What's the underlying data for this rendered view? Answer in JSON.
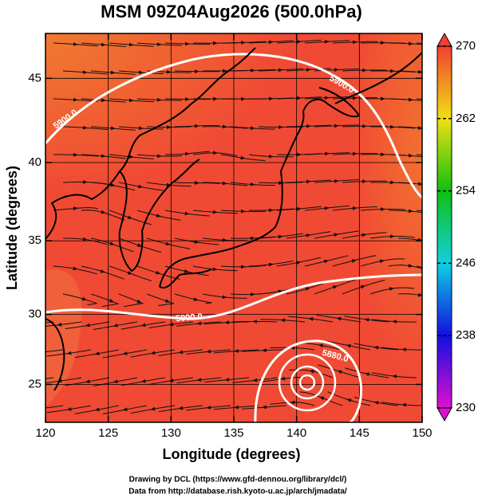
{
  "chart_data": {
    "type": "map",
    "title": "MSM 09Z04Aug2026 (500.0hPa)",
    "xlabel": "Longitude (degrees)",
    "ylabel": "Latitude  (degrees)",
    "xlim": [
      120,
      150
    ],
    "ylim": [
      22.2,
      47.5
    ],
    "xticks": [
      120,
      125,
      130,
      135,
      140,
      145,
      150
    ],
    "yticks": [
      25,
      30,
      35,
      40,
      45
    ],
    "projection": "mercator",
    "grid": true,
    "colorbar": {
      "lim": [
        230,
        270
      ],
      "ticks": [
        230,
        238,
        246,
        254,
        262,
        270
      ],
      "colors": [
        "#e010d0",
        "#1010e0",
        "#10d0e0",
        "#10c010",
        "#f0e010",
        "#f04030"
      ]
    },
    "contour_labels": [
      "5900.0",
      "5900.0",
      "5900.0",
      "5880.0"
    ],
    "credits": [
      "Drawing by DCL (https://www.gfd-dennou.org/library/dcl/)",
      "Data from http://database.rish.kyoto-u.ac.jp/arch/jmadata/"
    ]
  }
}
